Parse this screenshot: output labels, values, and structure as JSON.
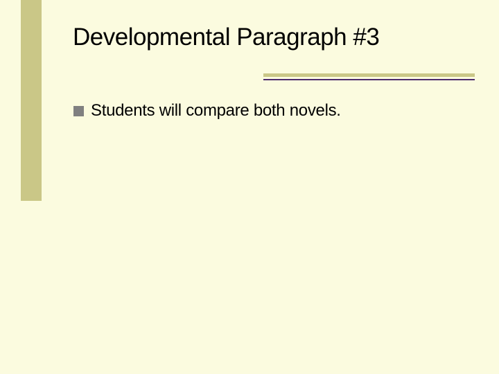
{
  "slide": {
    "title": "Developmental Paragraph #3",
    "title_fontsize": 35,
    "title_color": "#000000",
    "bullets": [
      {
        "text": "Students will compare both novels."
      }
    ],
    "bullet_fontsize": 24,
    "bullet_color": "#000000",
    "bullet_marker_color": "#808080",
    "background_color": "#fbfbdf",
    "accent_bar_color": "#cac787",
    "underline_primary_color": "#cac787",
    "underline_secondary_color": "#4b2a6b"
  }
}
